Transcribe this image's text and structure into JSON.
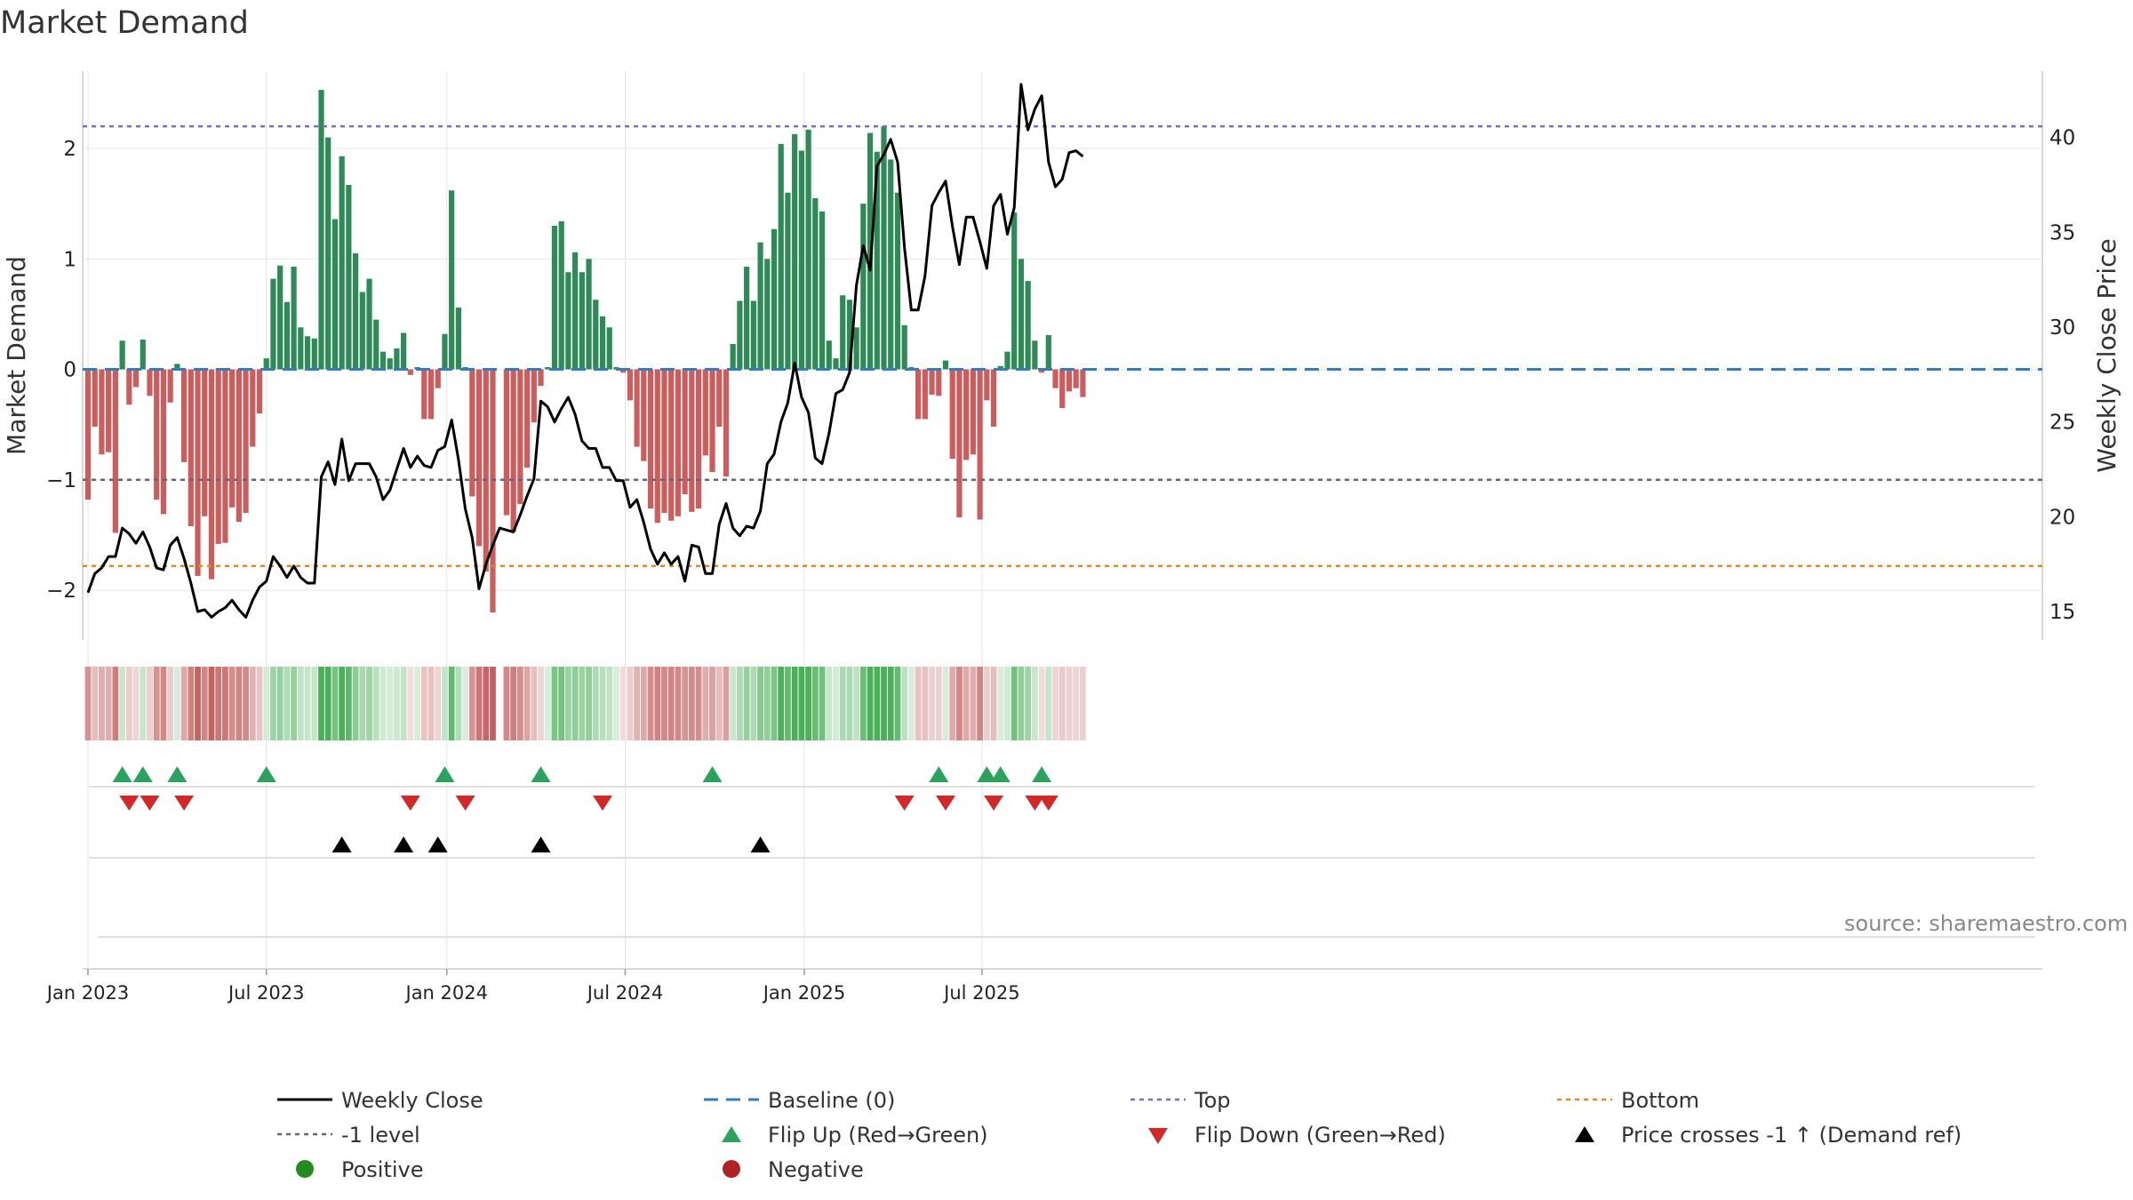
{
  "title": "Market Demand",
  "source": "source: sharemaestro.com",
  "colors": {
    "positive": "#2e8b57",
    "negative": "#cd5c5c",
    "line": "#000000",
    "top": "#7b70b8",
    "bottom": "#e08a24",
    "baseline": "#2f7fbf",
    "flip_up": "#2ca25f",
    "flip_down": "#d62728",
    "cross": "#000000",
    "pos_dot": "#228b22",
    "neg_dot": "#b22222"
  },
  "chart_data": {
    "type": "bar+line",
    "title": "Market Demand",
    "ylabel_left": "Market Demand",
    "ylabel_right": "Weekly Close Price",
    "ylim_left": [
      -2.45,
      2.7
    ],
    "ylim_right": [
      13.5,
      43.5
    ],
    "yticks_left": [
      {
        "v": 2,
        "label": "2"
      },
      {
        "v": 1,
        "label": "1"
      },
      {
        "v": 0,
        "label": "0"
      },
      {
        "v": -1,
        "label": "−1"
      },
      {
        "v": -2,
        "label": "−2"
      }
    ],
    "yticks_right": [
      {
        "v": 40,
        "label": "40"
      },
      {
        "v": 35,
        "label": "35"
      },
      {
        "v": 30,
        "label": "30"
      },
      {
        "v": 25,
        "label": "25"
      },
      {
        "v": 20,
        "label": "20"
      },
      {
        "v": 15,
        "label": "15"
      }
    ],
    "xticks": [
      {
        "w": 0,
        "label": "Jan 2023"
      },
      {
        "w": 26,
        "label": "Jul 2023"
      },
      {
        "w": 52.3,
        "label": "Jan 2024"
      },
      {
        "w": 78.3,
        "label": "Jul 2024"
      },
      {
        "w": 104.4,
        "label": "Jan 2025"
      },
      {
        "w": 130.3,
        "label": "Jul 2025"
      }
    ],
    "top_level": 2.2,
    "minus1_level": -1,
    "bottom_level": -1.78,
    "demand": [
      -1.18,
      -0.52,
      -0.77,
      -0.75,
      -1.48,
      0.26,
      -0.32,
      -0.16,
      0.27,
      -0.24,
      -1.18,
      -1.31,
      -0.3,
      0.05,
      -0.84,
      -1.42,
      -1.87,
      -1.33,
      -1.9,
      -1.58,
      -1.57,
      -1.25,
      -1.38,
      -1.3,
      -0.7,
      -0.4,
      0.1,
      0.82,
      0.94,
      0.61,
      0.93,
      0.38,
      0.3,
      0.28,
      2.53,
      2.1,
      1.36,
      1.93,
      1.67,
      1.05,
      0.7,
      0.82,
      0.45,
      0.16,
      0.1,
      0.19,
      0.33,
      -0.05,
      0.02,
      -0.45,
      -0.45,
      -0.17,
      0.32,
      1.62,
      0.56,
      0.02,
      -1.15,
      -1.6,
      -1.83,
      -2.2,
      0.0,
      -1.32,
      -1.47,
      -1.22,
      -0.89,
      -0.48,
      -0.15,
      0.02,
      1.3,
      1.34,
      0.88,
      1.06,
      0.88,
      1.0,
      0.63,
      0.48,
      0.38,
      0.02,
      -0.03,
      -0.28,
      -0.7,
      -0.83,
      -1.26,
      -1.39,
      -1.3,
      -1.37,
      -1.33,
      -1.13,
      -1.29,
      -1.26,
      -0.78,
      -0.93,
      -0.52,
      -0.97,
      0.23,
      0.62,
      0.93,
      0.62,
      1.15,
      1.0,
      1.27,
      2.04,
      1.6,
      2.13,
      1.98,
      2.17,
      1.55,
      1.43,
      0.26,
      0.1,
      0.67,
      0.63,
      0.38,
      1.5,
      2.14,
      1.97,
      2.2,
      1.9,
      1.6,
      0.4,
      0.02,
      -0.45,
      -0.45,
      -0.23,
      -0.24,
      0.08,
      -0.81,
      -1.34,
      -0.82,
      -0.77,
      -1.36,
      -0.28,
      -0.52,
      0.03,
      0.16,
      1.42,
      1.0,
      0.8,
      0.26,
      -0.03,
      0.31,
      -0.17,
      -0.35,
      -0.2,
      -0.17,
      -0.25
    ],
    "close": [
      16,
      17,
      17.3,
      17.9,
      17.9,
      19.4,
      19.1,
      18.6,
      19.2,
      18.4,
      17.3,
      17.2,
      18.5,
      18.9,
      17.8,
      16.5,
      15,
      15.1,
      14.7,
      15,
      15.2,
      15.6,
      15.1,
      14.7,
      15.6,
      16.3,
      16.6,
      17.9,
      17.4,
      16.8,
      17.4,
      16.8,
      16.5,
      16.5,
      22.1,
      22.9,
      21.7,
      24.1,
      21.9,
      22.8,
      22.8,
      22.8,
      22.1,
      20.9,
      21.4,
      22.5,
      23.6,
      22.6,
      23.2,
      22.7,
      22.6,
      23.5,
      23.7,
      25.1,
      23,
      20.4,
      18.9,
      16.2,
      17.5,
      18.5,
      19.4,
      19.3,
      19.2,
      20.1,
      21.1,
      22,
      26.1,
      25.8,
      25,
      25.7,
      26.3,
      25.4,
      24,
      23.6,
      23.6,
      22.6,
      22.6,
      21.9,
      21.9,
      20.5,
      20.9,
      19.7,
      18.3,
      17.5,
      18.1,
      17.5,
      17.9,
      16.6,
      18.5,
      18.4,
      17,
      17,
      19.6,
      20.7,
      19.4,
      19,
      19.5,
      19.4,
      20.3,
      22.8,
      23.3,
      25,
      26,
      28.1,
      26.3,
      25.5,
      23.1,
      22.8,
      24.4,
      26.5,
      26.7,
      27.6,
      32.2,
      34.3,
      33,
      38.5,
      39.1,
      39.9,
      38.7,
      34.2,
      30.9,
      30.9,
      32.7,
      36.4,
      37.1,
      37.7,
      35.3,
      33.3,
      35.8,
      35.8,
      34.5,
      33.1,
      36.4,
      37,
      34.9,
      36.3,
      42.8,
      40.4,
      41.5,
      42.2,
      38.7,
      37.4,
      37.8,
      39.2,
      39.3,
      39
    ],
    "flip_up": [
      5,
      8,
      13,
      26,
      52,
      66,
      91,
      124,
      131,
      133,
      139
    ],
    "flip_down": [
      6,
      9,
      14,
      47,
      55,
      75,
      119,
      125,
      132,
      138,
      140
    ],
    "price_cross": [
      37,
      46,
      51,
      66,
      98
    ],
    "missing_heat": [
      60
    ]
  },
  "legend": [
    {
      "kind": "line",
      "color": "#000000",
      "label": "Weekly Close"
    },
    {
      "kind": "dash",
      "color": "#2f7fbf",
      "label": "Baseline (0)"
    },
    {
      "kind": "dot",
      "color": "#7b70b8",
      "label": "Top"
    },
    {
      "kind": "dot",
      "color": "#e08a24",
      "label": "Bottom"
    },
    {
      "kind": "dot",
      "color": "#666677",
      "label": "-1 level"
    },
    {
      "kind": "tri-up",
      "color": "#2ca25f",
      "label": "Flip Up (Red→Green)"
    },
    {
      "kind": "tri-down",
      "color": "#d62728",
      "label": "Flip Down (Green→Red)"
    },
    {
      "kind": "tri-up",
      "color": "#000000",
      "label": "Price crosses -1 ↑ (Demand ref)"
    },
    {
      "kind": "circle",
      "color": "#228b22",
      "label": "Positive"
    },
    {
      "kind": "circle",
      "color": "#b22222",
      "label": "Negative"
    }
  ]
}
